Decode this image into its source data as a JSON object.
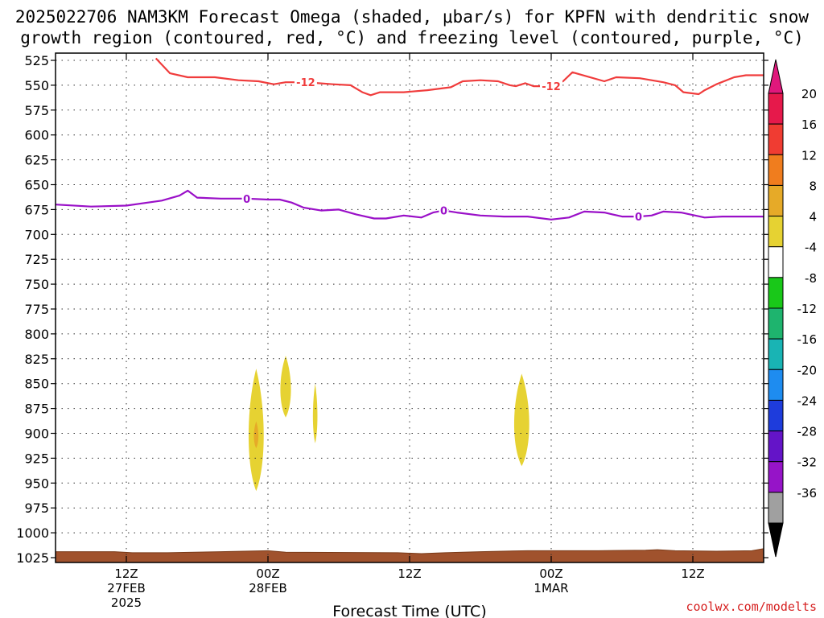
{
  "title_line1": "2025022706 NAM3KM Forecast Omega (shaded, μbar/s) for KPFN with dendritic snow",
  "title_line2": "growth region (contoured, red, °C) and freezing level (contoured, purple, °C)",
  "credit": "coolwx.com/modelts",
  "chart_data": {
    "type": "time-height cross section",
    "xlabel": "Forecast Time (UTC)",
    "ylabel": "",
    "x_range_hours": [
      0,
      60
    ],
    "y_range_mb": [
      1025,
      525
    ],
    "y_scale": "linear, inverted (pressure)",
    "grid": "dotted",
    "y_ticks": [
      525,
      550,
      575,
      600,
      625,
      650,
      675,
      700,
      725,
      750,
      775,
      800,
      825,
      850,
      875,
      900,
      925,
      950,
      975,
      1000,
      1025
    ],
    "x_ticks": [
      {
        "hour": 6,
        "line1": "12Z",
        "line2": "27FEB",
        "line3": "2025"
      },
      {
        "hour": 18,
        "line1": "00Z",
        "line2": "28FEB",
        "line3": ""
      },
      {
        "hour": 30,
        "line1": "12Z",
        "line2": "",
        "line3": ""
      },
      {
        "hour": 42,
        "line1": "00Z",
        "line2": "1MAR",
        "line3": ""
      },
      {
        "hour": 54,
        "line1": "12Z",
        "line2": "",
        "line3": ""
      }
    ],
    "colorbar": {
      "levels": [
        "20",
        "16",
        "12",
        "8",
        "4",
        "-4",
        "-8",
        "-12",
        "-16",
        "-20",
        "-24",
        "-28",
        "-32",
        "-36"
      ],
      "colors": [
        "#e6194b",
        "#f03c32",
        "#f07d1e",
        "#e6aa28",
        "#e6d232",
        "#ffffff",
        "#19c819",
        "#1eb46e",
        "#19b4b4",
        "#1e8cf0",
        "#1e3cdc",
        "#6414c8",
        "#9614c8",
        "#a0a0a0"
      ],
      "top_arrow_color": "#e0187c",
      "bottom_arrow_color": "#000000"
    },
    "series": [
      {
        "name": "-12",
        "color": "#f03c3c",
        "label_hours": [
          21.2,
          42.0
        ],
        "points": [
          [
            8.5,
            523
          ],
          [
            9.7,
            538
          ],
          [
            11.2,
            542
          ],
          [
            13.5,
            542
          ],
          [
            15.5,
            545
          ],
          [
            17.2,
            546
          ],
          [
            18.5,
            549
          ],
          [
            19.5,
            547
          ],
          [
            21.2,
            547
          ],
          [
            23.5,
            549
          ],
          [
            25.0,
            550
          ],
          [
            26.0,
            557
          ],
          [
            26.7,
            560
          ],
          [
            27.5,
            557
          ],
          [
            29.5,
            557
          ],
          [
            31.5,
            555
          ],
          [
            33.5,
            552
          ],
          [
            34.5,
            546
          ],
          [
            36.0,
            545
          ],
          [
            37.5,
            546
          ],
          [
            38.5,
            550
          ],
          [
            39.0,
            551
          ],
          [
            39.8,
            548
          ],
          [
            40.5,
            551
          ],
          [
            42.0,
            551
          ],
          [
            43.0,
            546
          ],
          [
            43.8,
            537
          ],
          [
            45.0,
            541
          ],
          [
            46.5,
            546
          ],
          [
            47.5,
            542
          ],
          [
            49.5,
            543
          ],
          [
            51.5,
            547
          ],
          [
            52.5,
            550
          ],
          [
            53.2,
            557
          ],
          [
            54.5,
            559
          ],
          [
            55.0,
            555
          ],
          [
            56.0,
            549
          ],
          [
            57.5,
            542
          ],
          [
            58.5,
            540
          ],
          [
            60.0,
            540
          ]
        ]
      },
      {
        "name": "0",
        "color": "#9a10c8",
        "label_hours": [
          16.2,
          32.9,
          49.4
        ],
        "points": [
          [
            0,
            670
          ],
          [
            3.0,
            672
          ],
          [
            6.0,
            671
          ],
          [
            9.0,
            666
          ],
          [
            10.5,
            661
          ],
          [
            11.2,
            656
          ],
          [
            12.0,
            663
          ],
          [
            14.0,
            664
          ],
          [
            16.2,
            664
          ],
          [
            18.0,
            665
          ],
          [
            19.0,
            665
          ],
          [
            20.0,
            668
          ],
          [
            21.0,
            673
          ],
          [
            22.5,
            676
          ],
          [
            24.0,
            675
          ],
          [
            25.5,
            680
          ],
          [
            27.0,
            684
          ],
          [
            28.0,
            684
          ],
          [
            29.5,
            681
          ],
          [
            31.0,
            683
          ],
          [
            32.0,
            678
          ],
          [
            32.9,
            676
          ],
          [
            34.0,
            678
          ],
          [
            36.0,
            681
          ],
          [
            38.0,
            682
          ],
          [
            40.0,
            682
          ],
          [
            42.0,
            685
          ],
          [
            43.5,
            683
          ],
          [
            44.8,
            677
          ],
          [
            46.5,
            678
          ],
          [
            48.0,
            682
          ],
          [
            49.4,
            682
          ],
          [
            50.5,
            681
          ],
          [
            51.5,
            677
          ],
          [
            53.0,
            678
          ],
          [
            55.0,
            683
          ],
          [
            56.5,
            682
          ],
          [
            58.0,
            682
          ],
          [
            60.0,
            682
          ]
        ]
      }
    ],
    "omega_shaded_regions": [
      {
        "value_range": [
          4,
          8
        ],
        "center_hour": 17.0,
        "pressure_range_mb": [
          835,
          958
        ]
      },
      {
        "value_range": [
          8,
          12
        ],
        "center_hour": 17.0,
        "pressure_range_mb": [
          888,
          915
        ]
      },
      {
        "value_range": [
          4,
          8
        ],
        "center_hour": 19.5,
        "pressure_range_mb": [
          822,
          884
        ]
      },
      {
        "value_range": [
          4,
          8
        ],
        "center_hour": 22.0,
        "pressure_range_mb": [
          850,
          910
        ]
      },
      {
        "value_range": [
          4,
          8
        ],
        "center_hour": 39.5,
        "pressure_range_mb": [
          840,
          933
        ]
      }
    ],
    "surface_band_color": "#a0522d"
  }
}
